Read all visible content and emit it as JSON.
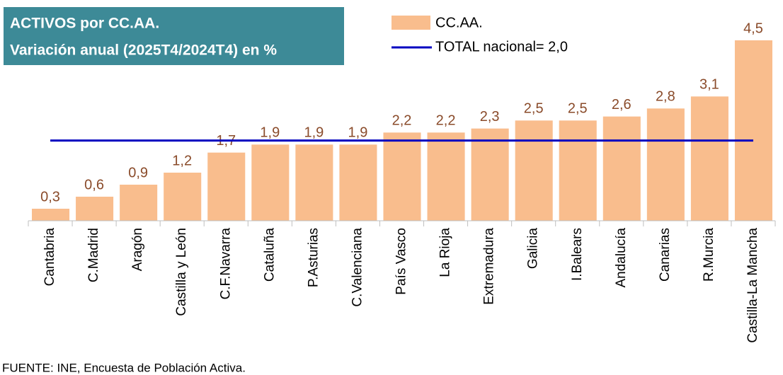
{
  "chart_data": {
    "type": "bar",
    "title": "ACTIVOS por CC.AA.",
    "subtitle": "Variación anual (2025T4/2024T4) en %",
    "categories": [
      "Cantabria",
      "C.Madrid",
      "Aragón",
      "Castilla y León",
      "C.F.Navarra",
      "Cataluña",
      "P.Asturias",
      "C.Valenciana",
      "País Vasco",
      "La Rioja",
      "Extremadura",
      "Galicia",
      "I.Balears",
      "Andalucía",
      "Canarias",
      "R.Murcia",
      "Castilla-La Mancha"
    ],
    "series": [
      {
        "name": "CC.AA.",
        "color": "#f9bd8d",
        "values": [
          0.3,
          0.6,
          0.9,
          1.2,
          1.7,
          1.9,
          1.9,
          1.9,
          2.2,
          2.2,
          2.3,
          2.5,
          2.5,
          2.6,
          2.8,
          3.1,
          4.5
        ],
        "value_labels": [
          "0,3",
          "0,6",
          "0,9",
          "1,2",
          "1,7",
          "1,9",
          "1,9",
          "1,9",
          "2,2",
          "2,2",
          "2,3",
          "2,5",
          "2,5",
          "2,6",
          "2,8",
          "3,1",
          "4,5"
        ]
      }
    ],
    "reference_line": {
      "label": "TOTAL nacional= 2,0",
      "value": 2.0,
      "color": "#0000c0"
    },
    "source": "FUENTE: INE, Encuesta de Población Activa."
  }
}
